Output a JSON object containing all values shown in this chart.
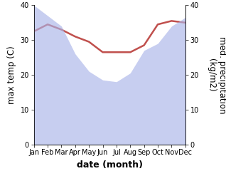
{
  "months": [
    "Jan",
    "Feb",
    "Mar",
    "Apr",
    "May",
    "Jun",
    "Jul",
    "Aug",
    "Sep",
    "Oct",
    "Nov",
    "Dec"
  ],
  "temp_max": [
    32.5,
    34.5,
    33.0,
    31.0,
    29.5,
    26.5,
    26.5,
    26.5,
    28.5,
    34.5,
    35.5,
    35.0
  ],
  "precip": [
    40.0,
    37.0,
    34.0,
    26.0,
    21.0,
    18.5,
    18.0,
    20.5,
    27.0,
    29.0,
    34.0,
    36.5
  ],
  "temp_ylim": [
    0,
    40
  ],
  "precip_ylim": [
    0,
    40
  ],
  "fill_color": "#aab4e8",
  "fill_alpha": 0.65,
  "line_color": "#c0504d",
  "line_width": 1.8,
  "xlabel": "date (month)",
  "ylabel_left": "max temp (C)",
  "ylabel_right": "med. precipitation\n(kg/m2)",
  "bg_color": "#ffffff",
  "tick_label_fontsize": 7.0,
  "axis_label_fontsize": 8.5,
  "xlabel_fontsize": 9.0
}
